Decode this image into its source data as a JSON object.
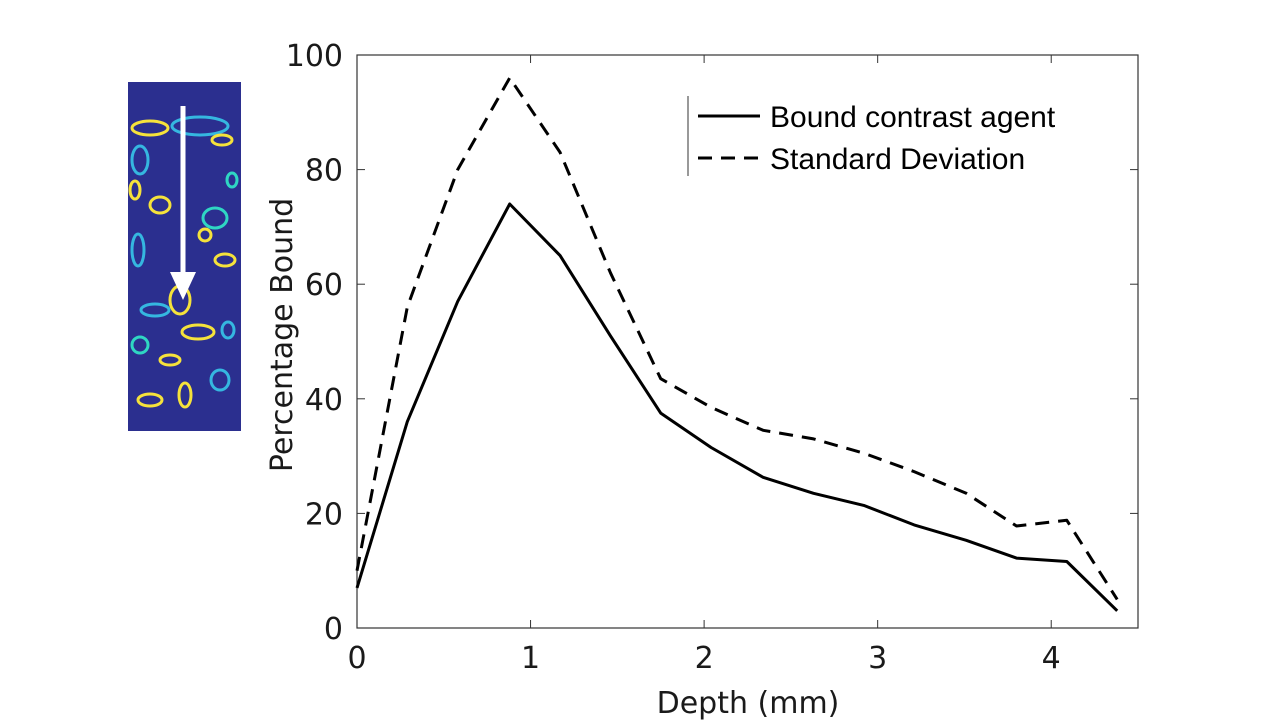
{
  "chart_data": {
    "type": "line",
    "xlabel": "Depth (mm)",
    "ylabel": "Percentage Bound",
    "xlim": [
      0,
      4.5
    ],
    "ylim": [
      0,
      100
    ],
    "xticks": [
      0,
      1,
      2,
      3,
      4
    ],
    "yticks": [
      0,
      20,
      40,
      60,
      80,
      100
    ],
    "grid": false,
    "legend_position": "top-right",
    "series": [
      {
        "name": "Bound contrast agent",
        "style": "solid",
        "color": "#000000",
        "x": [
          0,
          0.29,
          0.58,
          0.88,
          1.17,
          1.46,
          1.75,
          2.04,
          2.34,
          2.63,
          2.92,
          3.21,
          3.51,
          3.8,
          4.09,
          4.38
        ],
        "values": [
          7,
          36,
          57,
          74,
          65,
          51,
          37.5,
          31.5,
          26.3,
          23.5,
          21.4,
          18,
          15.3,
          12.2,
          11.6,
          3
        ]
      },
      {
        "name": "Standard Deviation",
        "style": "dashed",
        "color": "#000000",
        "x": [
          0,
          0.29,
          0.58,
          0.88,
          1.17,
          1.46,
          1.75,
          2.04,
          2.34,
          2.63,
          2.92,
          3.21,
          3.51,
          3.8,
          4.09,
          4.38
        ],
        "values": [
          10,
          56,
          80,
          96,
          83,
          62,
          43.5,
          38.5,
          34.5,
          33,
          30.5,
          27.3,
          23.5,
          17.8,
          18.8,
          5
        ]
      }
    ]
  },
  "inset_image": {
    "name": "bound-contrast-map",
    "background_color": "#2b2f8f",
    "highlight_colors": [
      "#f5e23b",
      "#35b7e0",
      "#2fd6c3"
    ],
    "arrow_color": "#ffffff"
  }
}
